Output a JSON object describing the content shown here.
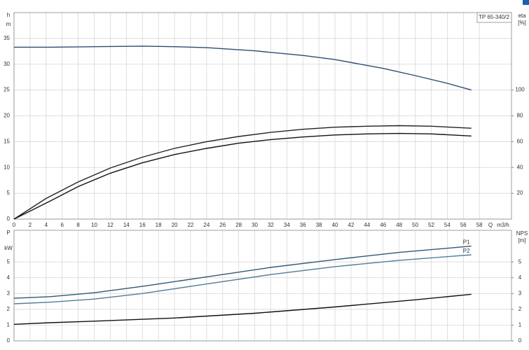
{
  "chart_data": [
    {
      "type": "line",
      "title": "TP 65-340/2",
      "ylabel": [
        "h",
        "m"
      ],
      "y2label": [
        "eta",
        "[%]"
      ],
      "xlabel": [
        "Q",
        "m3/h"
      ],
      "xlim": [
        0,
        62
      ],
      "xticks": [
        0,
        2,
        4,
        6,
        8,
        10,
        12,
        14,
        16,
        18,
        20,
        22,
        24,
        26,
        28,
        30,
        32,
        34,
        36,
        38,
        40,
        42,
        44,
        46,
        48,
        50,
        52,
        54,
        56,
        58
      ],
      "ylim": [
        0,
        40
      ],
      "yticks": [
        0,
        5,
        10,
        15,
        20,
        25,
        30,
        35
      ],
      "y2lim": [
        0,
        160
      ],
      "y2ticks": [
        20,
        40,
        60,
        80,
        100
      ],
      "grid": true,
      "series": [
        {
          "color": "#2c4d6e",
          "x": [
            0,
            4.5,
            10,
            16,
            20,
            24,
            30,
            36,
            40,
            46,
            50,
            54,
            57
          ],
          "values": [
            33.3,
            33.3,
            33.4,
            33.5,
            33.4,
            33.2,
            32.6,
            31.7,
            30.9,
            29.2,
            27.8,
            26.3,
            25.0
          ]
        },
        {
          "color": "#222222",
          "axis": "y2",
          "x": [
            0,
            4,
            8,
            12,
            16,
            20,
            24,
            28,
            32,
            36,
            40,
            44,
            48,
            52,
            57
          ],
          "values": [
            0,
            16,
            28.8,
            39.6,
            48,
            54.8,
            60,
            64,
            67.2,
            69.6,
            71.2,
            72,
            72.4,
            72,
            70.4
          ]
        },
        {
          "color": "#111111",
          "axis": "y2",
          "x": [
            0,
            4.5,
            8,
            12,
            16,
            20,
            24,
            28,
            32,
            36,
            40,
            44,
            48,
            52,
            57
          ],
          "values": [
            0,
            14,
            25.2,
            35.6,
            43.6,
            50,
            54.8,
            58.8,
            61.6,
            63.6,
            65.2,
            66,
            66.4,
            66,
            64.4
          ]
        }
      ]
    },
    {
      "type": "line",
      "ylabel": [
        "P",
        "kW"
      ],
      "y2label": [
        "NPS",
        "[m]"
      ],
      "ylim": [
        0,
        7
      ],
      "yticks": [
        0,
        1,
        2,
        3,
        4,
        5
      ],
      "y2lim": [
        0,
        7
      ],
      "y2ticks": [
        0,
        1,
        2,
        3,
        4,
        5
      ],
      "grid": true,
      "series": [
        {
          "name": "P1",
          "color": "#2f5878",
          "x": [
            0,
            4.5,
            10,
            16,
            24,
            32,
            40,
            48,
            57
          ],
          "values": [
            2.7,
            2.8,
            3.05,
            3.45,
            4.05,
            4.65,
            5.15,
            5.6,
            6.0
          ]
        },
        {
          "name": "P2",
          "color": "#4f7d9c",
          "x": [
            0,
            4.5,
            10,
            16,
            24,
            32,
            40,
            48,
            57
          ],
          "values": [
            2.35,
            2.45,
            2.65,
            3.0,
            3.6,
            4.2,
            4.7,
            5.1,
            5.45
          ]
        },
        {
          "color": "#111111",
          "axis": "y2",
          "x": [
            0,
            4.5,
            10,
            20,
            30,
            40,
            50,
            57
          ],
          "values": [
            1.05,
            1.15,
            1.25,
            1.45,
            1.75,
            2.15,
            2.6,
            2.95
          ]
        }
      ]
    }
  ]
}
